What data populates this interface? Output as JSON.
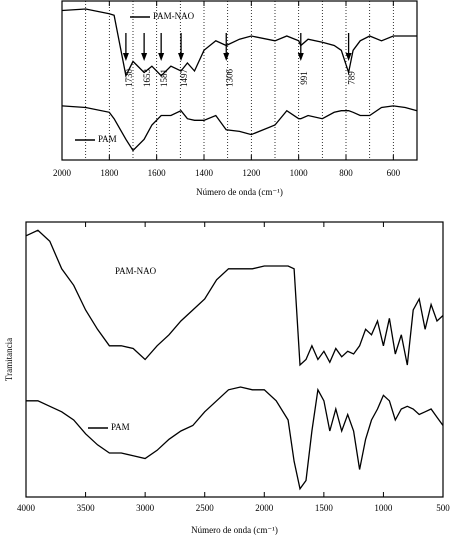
{
  "chart_data": [
    {
      "type": "line",
      "xlabel": "Número de onda (cm⁻¹)",
      "xlim": [
        2000,
        500
      ],
      "xticks": [
        2000,
        1800,
        1600,
        1400,
        1200,
        1000,
        800,
        600
      ],
      "xticks_minor": [
        1900,
        1700,
        1500,
        1300,
        1100,
        900,
        700
      ],
      "ylim": [
        0,
        100
      ],
      "grid": true,
      "x": [
        2000,
        1900,
        1800,
        1780,
        1730,
        1700,
        1653,
        1620,
        1581,
        1540,
        1497,
        1470,
        1440,
        1400,
        1350,
        1306,
        1250,
        1200,
        1100,
        1050,
        1000,
        991,
        960,
        900,
        850,
        820,
        789,
        770,
        740,
        700,
        650,
        600,
        550,
        500
      ],
      "series": [
        {
          "name": "PAM-NAO",
          "color": "#000000",
          "values": [
            94,
            95,
            92,
            91,
            53,
            62,
            55,
            59,
            53,
            59,
            56,
            61,
            56,
            69,
            75,
            72,
            76,
            78,
            75,
            78,
            75,
            72,
            76,
            74,
            72,
            69,
            55,
            69,
            75,
            78,
            75,
            78,
            78,
            78
          ]
        },
        {
          "name": "PAM",
          "color": "#000000",
          "values": [
            34,
            33,
            30,
            26,
            13,
            6,
            13,
            22,
            28,
            28,
            31,
            26,
            25,
            25,
            28,
            19,
            18,
            16,
            22,
            31,
            26,
            26,
            28,
            26,
            30,
            31,
            31,
            30,
            28,
            28,
            33,
            34,
            33,
            31
          ]
        }
      ],
      "annotations": [
        {
          "text": "1730",
          "x": 1730
        },
        {
          "text": "1653",
          "x": 1653
        },
        {
          "text": "1581",
          "x": 1581
        },
        {
          "text": "1497",
          "x": 1497
        },
        {
          "text": "1306",
          "x": 1306
        },
        {
          "text": "991",
          "x": 991
        },
        {
          "text": "789",
          "x": 789
        }
      ]
    },
    {
      "type": "line",
      "xlabel": "Número de onda (cm⁻¹)",
      "ylabel": "Tramitancia",
      "xlim": [
        4000,
        500
      ],
      "xticks": [
        4000,
        3500,
        3000,
        2500,
        2000,
        1500,
        1000,
        500
      ],
      "ylim": [
        0,
        100
      ],
      "grid": false,
      "x": [
        4000,
        3900,
        3800,
        3700,
        3600,
        3500,
        3400,
        3300,
        3200,
        3100,
        3000,
        2900,
        2800,
        2700,
        2600,
        2500,
        2400,
        2300,
        2200,
        2100,
        2000,
        1900,
        1800,
        1750,
        1700,
        1650,
        1600,
        1550,
        1500,
        1450,
        1400,
        1350,
        1300,
        1250,
        1200,
        1150,
        1100,
        1050,
        1000,
        950,
        900,
        850,
        800,
        750,
        700,
        650,
        600,
        550,
        500
      ],
      "series": [
        {
          "name": "PAM-NAO",
          "color": "#000000",
          "values": [
            95,
            97,
            93,
            83,
            77,
            68,
            61,
            55,
            55,
            54,
            50,
            55,
            59,
            64,
            68,
            72,
            79,
            83,
            83,
            83,
            84,
            84,
            84,
            83,
            48,
            50,
            55,
            50,
            53,
            49,
            54,
            51,
            53,
            52,
            55,
            61,
            59,
            64,
            55,
            65,
            52,
            59,
            48,
            68,
            72,
            61,
            70,
            64,
            66
          ]
        },
        {
          "name": "PAM",
          "color": "#000000",
          "values": [
            35,
            35,
            33,
            31,
            28,
            23,
            19,
            16,
            16,
            15,
            14,
            17,
            21,
            24,
            26,
            31,
            35,
            39,
            40,
            39,
            39,
            35,
            28,
            13,
            3,
            6,
            24,
            39,
            35,
            24,
            32,
            24,
            30,
            24,
            10,
            21,
            28,
            32,
            37,
            35,
            28,
            32,
            33,
            32,
            30,
            31,
            32,
            29,
            26
          ]
        }
      ]
    }
  ]
}
